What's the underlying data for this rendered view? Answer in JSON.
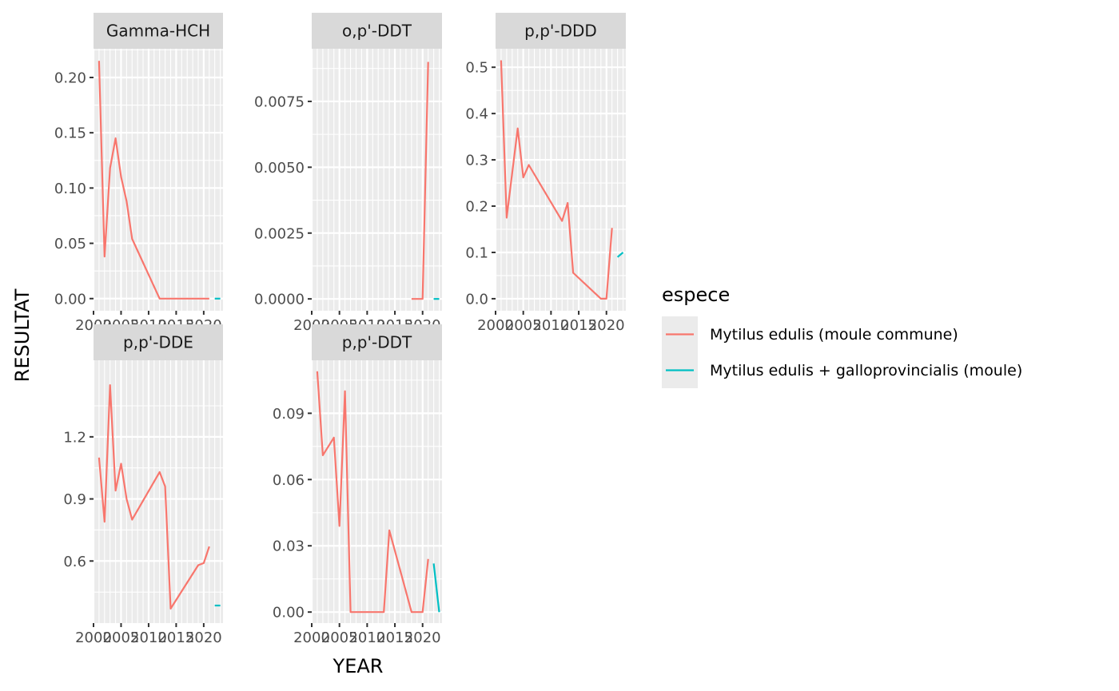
{
  "chart_data": {
    "type": "line",
    "facet_by": "parameter",
    "xlabel": "YEAR",
    "ylabel": "RESULTAT",
    "x_tick_labels": [
      "2000",
      "2005",
      "2010",
      "2015",
      "2020"
    ],
    "legend": {
      "title": "espece",
      "position": "right",
      "entries": [
        {
          "name": "Mytilus edulis (moule commune)",
          "color": "#F8766D"
        },
        {
          "name": "Mytilus edulis + galloprovincialis (moule)",
          "color": "#00BFC4"
        }
      ]
    },
    "panels": [
      {
        "title": "Gamma-HCH",
        "xlim": [
          2000,
          2023.5
        ],
        "ylim": [
          -0.011,
          0.226
        ],
        "yticks": [
          0,
          0.05,
          0.1,
          0.15,
          0.2
        ],
        "ytick_labels": [
          "0.00",
          "0.05",
          "0.10",
          "0.15",
          "0.20"
        ],
        "series": [
          {
            "name": "Mytilus edulis (moule commune)",
            "x": [
              2001,
              2002,
              2003,
              2004,
              2005,
              2006,
              2007,
              2012,
              2021
            ],
            "y": [
              0.215,
              0.038,
              0.118,
              0.145,
              0.11,
              0.088,
              0.054,
              0,
              0
            ]
          },
          {
            "name": "Mytilus edulis + galloprovincialis (moule)",
            "x": [
              2022,
              2023
            ],
            "y": [
              0,
              0
            ]
          }
        ]
      },
      {
        "title": "o,p'-DDT",
        "xlim": [
          2000,
          2023.5
        ],
        "ylim": [
          -0.00045,
          0.0095
        ],
        "yticks": [
          0,
          0.0025,
          0.005,
          0.0075
        ],
        "ytick_labels": [
          "0.0000",
          "0.0025",
          "0.0050",
          "0.0075"
        ],
        "series": [
          {
            "name": "Mytilus edulis (moule commune)",
            "x": [
              2018,
              2020,
              2021
            ],
            "y": [
              0,
              0,
              0.009
            ]
          },
          {
            "name": "Mytilus edulis + galloprovincialis (moule)",
            "x": [
              2022,
              2023
            ],
            "y": [
              0,
              0
            ]
          }
        ]
      },
      {
        "title": "p,p'-DDD",
        "xlim": [
          2000,
          2023.5
        ],
        "ylim": [
          -0.026,
          0.54
        ],
        "yticks": [
          0,
          0.1,
          0.2,
          0.3,
          0.4,
          0.5
        ],
        "ytick_labels": [
          "0.0",
          "0.1",
          "0.2",
          "0.3",
          "0.4",
          "0.5"
        ],
        "series": [
          {
            "name": "Mytilus edulis (moule commune)",
            "x": [
              2001,
              2002,
              2004,
              2005,
              2006,
              2012,
              2013,
              2014,
              2019,
              2020,
              2021
            ],
            "y": [
              0.515,
              0.175,
              0.368,
              0.262,
              0.289,
              0.168,
              0.207,
              0.056,
              0,
              0,
              0.153
            ]
          },
          {
            "name": "Mytilus edulis + galloprovincialis (moule)",
            "x": [
              2022,
              2023
            ],
            "y": [
              0.09,
              0.1
            ]
          }
        ]
      },
      {
        "title": "p,p'-DDE",
        "xlim": [
          2000,
          2023.5
        ],
        "ylim": [
          0.3,
          1.57
        ],
        "yticks": [
          0.6,
          0.9,
          1.2
        ],
        "ytick_labels": [
          "0.6",
          "0.9",
          "1.2"
        ],
        "series": [
          {
            "name": "Mytilus edulis (moule commune)",
            "x": [
              2001,
              2002,
              2003,
              2004,
              2005,
              2006,
              2007,
              2012,
              2013,
              2014,
              2019,
              2020,
              2021
            ],
            "y": [
              1.1,
              0.79,
              1.45,
              0.94,
              1.07,
              0.9,
              0.8,
              1.03,
              0.96,
              0.37,
              0.58,
              0.59,
              0.67
            ]
          },
          {
            "name": "Mytilus edulis + galloprovincialis (moule)",
            "x": [
              2022,
              2023
            ],
            "y": [
              0.385,
              0.385
            ]
          }
        ]
      },
      {
        "title": "p,p'-DDT",
        "xlim": [
          2000,
          2023.5
        ],
        "ylim": [
          -0.005,
          0.114
        ],
        "yticks": [
          0,
          0.03,
          0.06,
          0.09
        ],
        "ytick_labels": [
          "0.00",
          "0.03",
          "0.06",
          "0.09"
        ],
        "series": [
          {
            "name": "Mytilus edulis (moule commune)",
            "x": [
              2001,
              2002,
              2004,
              2005,
              2006,
              2007,
              2013,
              2014,
              2018,
              2020,
              2021
            ],
            "y": [
              0.109,
              0.071,
              0.079,
              0.039,
              0.1,
              0,
              0,
              0.037,
              0,
              0,
              0.024
            ]
          },
          {
            "name": "Mytilus edulis + galloprovincialis (moule)",
            "x": [
              2022,
              2023
            ],
            "y": [
              0.022,
              0
            ]
          }
        ]
      }
    ]
  }
}
